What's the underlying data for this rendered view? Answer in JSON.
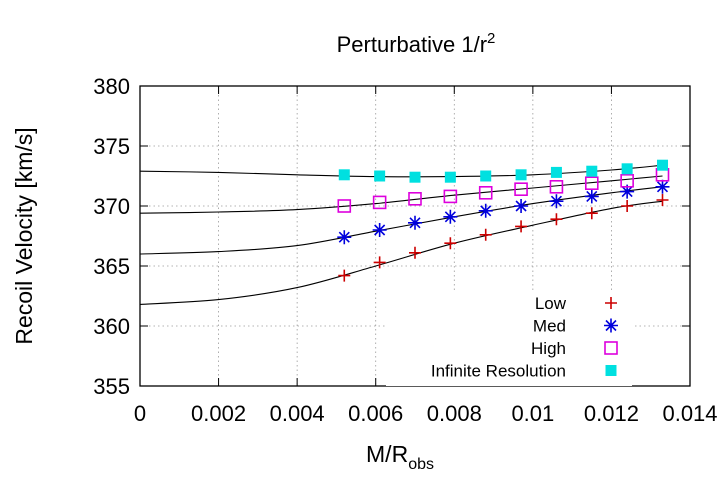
{
  "chart_data": {
    "type": "scatter",
    "title": "Perturbative 1/r",
    "title_superscript": "2",
    "xlabel": "M/R",
    "xlabel_subscript": "obs",
    "ylabel": "Recoil Velocity [km/s]",
    "xlim": [
      0,
      0.014
    ],
    "ylim": [
      355,
      380
    ],
    "xticks": [
      0,
      0.002,
      0.004,
      0.006,
      0.008,
      0.01,
      0.012,
      0.014
    ],
    "xtick_labels": [
      "0",
      "0.002",
      "0.004",
      "0.006",
      "0.008",
      "0.01",
      "0.012",
      "0.014"
    ],
    "yticks": [
      355,
      360,
      365,
      370,
      375,
      380
    ],
    "ytick_labels": [
      "355",
      "360",
      "365",
      "370",
      "375",
      "380"
    ],
    "grid": true,
    "legend_position": "bottom-right",
    "x": [
      0.0052,
      0.0061,
      0.007,
      0.0079,
      0.0088,
      0.0097,
      0.0106,
      0.0115,
      0.0124,
      0.0133
    ],
    "series": [
      {
        "name": "Low",
        "marker": "plus",
        "color": "#cc0000",
        "values": [
          364.2,
          365.3,
          366.1,
          366.9,
          367.6,
          368.3,
          368.9,
          369.4,
          370.0,
          370.5
        ]
      },
      {
        "name": "Med",
        "marker": "asterisk",
        "color": "#0000dd",
        "values": [
          367.4,
          368.0,
          368.6,
          369.1,
          369.6,
          370.0,
          370.4,
          370.8,
          371.2,
          371.6
        ]
      },
      {
        "name": "High",
        "marker": "open-square",
        "color": "#dd00dd",
        "values": [
          370.0,
          370.3,
          370.6,
          370.8,
          371.1,
          371.4,
          371.6,
          371.9,
          372.1,
          372.6
        ]
      },
      {
        "name": "Infinite Resolution",
        "marker": "filled-square",
        "color": "#00e0e0",
        "values": [
          372.6,
          372.5,
          372.4,
          372.4,
          372.5,
          372.6,
          372.8,
          372.9,
          373.1,
          373.4
        ]
      }
    ],
    "fit_curves": [
      {
        "x": [
          0,
          0.002,
          0.004,
          0.006,
          0.008,
          0.01,
          0.012,
          0.0133
        ],
        "y": [
          361.8,
          362.2,
          363.2,
          365.0,
          366.9,
          368.4,
          369.8,
          370.4
        ]
      },
      {
        "x": [
          0,
          0.002,
          0.004,
          0.006,
          0.008,
          0.01,
          0.012,
          0.0133
        ],
        "y": [
          366.0,
          366.2,
          366.7,
          367.9,
          369.1,
          370.2,
          371.1,
          371.6
        ]
      },
      {
        "x": [
          0,
          0.002,
          0.004,
          0.006,
          0.008,
          0.01,
          0.012,
          0.0133
        ],
        "y": [
          369.4,
          369.5,
          369.7,
          370.2,
          370.9,
          371.5,
          372.1,
          372.5
        ]
      },
      {
        "x": [
          0,
          0.002,
          0.004,
          0.006,
          0.008,
          0.01,
          0.012,
          0.0133
        ],
        "y": [
          372.9,
          372.8,
          372.6,
          372.45,
          372.45,
          372.6,
          373.0,
          373.4
        ]
      }
    ]
  }
}
